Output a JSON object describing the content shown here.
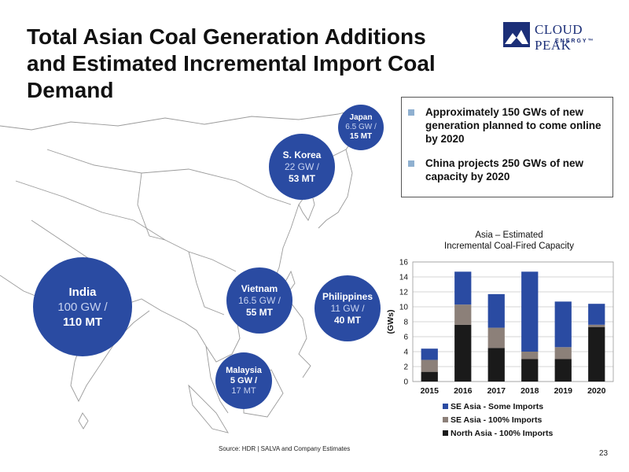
{
  "title": {
    "line1": "Total Asian Coal Generation Additions",
    "line2": "and Estimated Incremental Import Coal Demand"
  },
  "logo": {
    "name": "CLOUD PEAK",
    "sub": "ENERGY™"
  },
  "bubbles": {
    "india": {
      "name": "India",
      "gw": "100 GW /",
      "mt": "110 MT"
    },
    "skorea": {
      "name": "S. Korea",
      "gw": "22 GW /",
      "mt": "53 MT"
    },
    "japan": {
      "name": "Japan",
      "gw": "6.5 GW /",
      "mt": "15 MT"
    },
    "vietnam": {
      "name": "Vietnam",
      "gw": "16.5 GW /",
      "mt": "55 MT"
    },
    "philippines": {
      "name": "Philippines",
      "gw": "11 GW /",
      "mt": "40 MT"
    },
    "malaysia": {
      "name": "Malaysia",
      "gw": "5 GW /",
      "mt": "17 MT"
    }
  },
  "bullets": [
    "Approximately 150 GWs of new generation planned to come online by 2020",
    "China projects 250 GWs of new capacity by 2020"
  ],
  "chart_data": {
    "type": "bar",
    "stacked": true,
    "title": "Asia – Estimated Incremental Coal-Fired Capacity",
    "ylabel": "(GWs)",
    "xlabel": "",
    "ylim": [
      0,
      16
    ],
    "yticks": [
      0,
      2,
      4,
      6,
      8,
      10,
      12,
      14,
      16
    ],
    "grid": true,
    "legend_position": "bottom",
    "categories": [
      "2015",
      "2016",
      "2017",
      "2018",
      "2019",
      "2020"
    ],
    "series": [
      {
        "name": "North Asia - 100%  Imports",
        "color": "#1a1a1a",
        "values": [
          1.3,
          7.6,
          4.5,
          3.0,
          3.0,
          7.3
        ]
      },
      {
        "name": "SE Asia - 100%  Imports",
        "color": "#8c8079",
        "values": [
          1.6,
          2.7,
          2.7,
          1.0,
          1.6,
          0.3
        ]
      },
      {
        "name": "SE Asia - Some Imports",
        "color": "#2a4ba2",
        "values": [
          1.5,
          4.4,
          4.5,
          10.7,
          6.1,
          2.8
        ]
      }
    ]
  },
  "source": "Source: HDR | SALVA and Company Estimates",
  "page_number": "23",
  "colors": {
    "bubble": "#2a4ba2",
    "accent": "#1c2f78"
  }
}
